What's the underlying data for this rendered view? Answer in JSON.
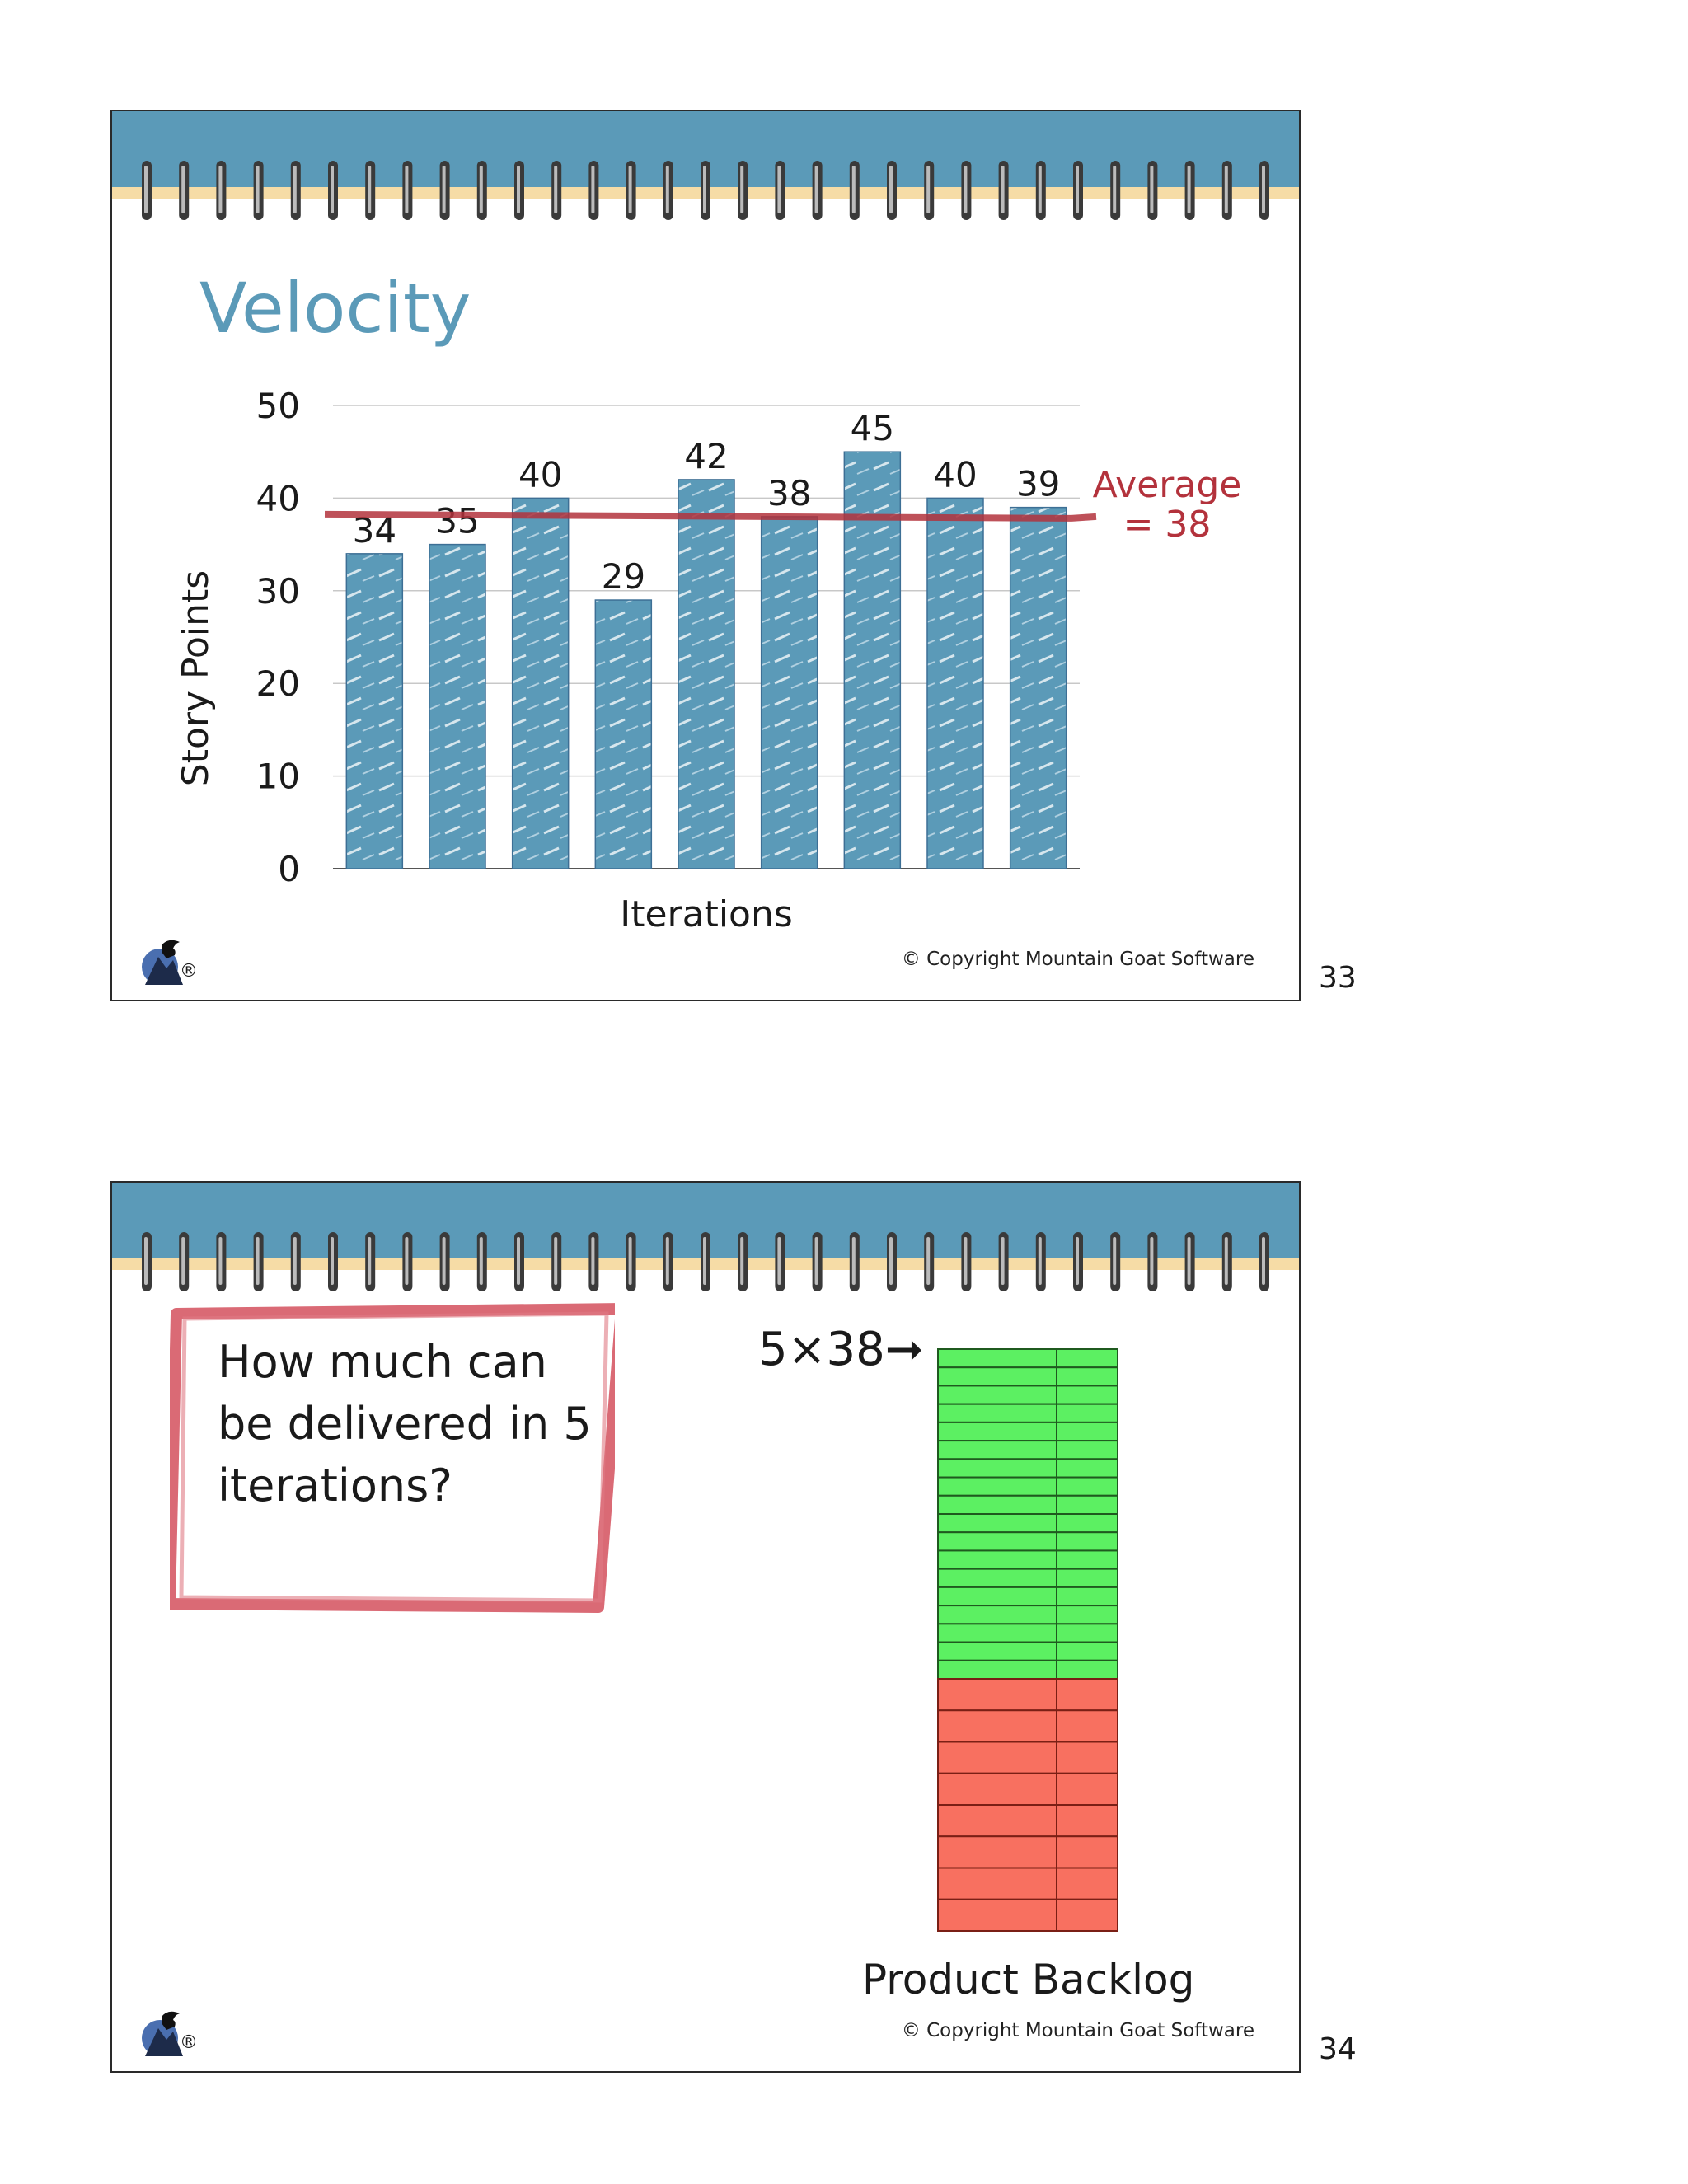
{
  "slide33": {
    "title": "Velocity",
    "copyright": "© Copyright Mountain Goat Software",
    "page_number": "33",
    "logo_mark": "®",
    "logo_icon": "mountain-goat-logo",
    "average_line": "Average",
    "average_value": "= 38",
    "colors": {
      "title": "#5b9ab8",
      "bar": "#5b9ab8",
      "average": "#b3323c",
      "binding": "#5b9ab8"
    }
  },
  "chart_data": {
    "type": "bar",
    "categories": [
      "",
      "",
      "",
      "",
      "",
      "",
      "",
      "",
      ""
    ],
    "values": [
      34,
      35,
      40,
      29,
      42,
      38,
      45,
      40,
      39
    ],
    "data_labels": [
      "34",
      "35",
      "40",
      "29",
      "42",
      "38",
      "45",
      "40",
      "39"
    ],
    "title": "",
    "xlabel": "Iterations",
    "ylabel": "Story Points",
    "ylim": [
      0,
      50
    ],
    "yticks": [
      "0",
      "10",
      "20",
      "30",
      "40",
      "50"
    ],
    "grid": true,
    "reference_line": {
      "value": 38,
      "label": "Average = 38"
    }
  },
  "slide34": {
    "question": "How much can be delivered in 5 iterations?",
    "multiplier": "5×38➞",
    "backlog_label": "Product Backlog",
    "copyright": "© Copyright Mountain Goat Software",
    "page_number": "34",
    "logo_mark": "®",
    "logo_icon": "mountain-goat-logo",
    "colors": {
      "delivered": "#5cf062",
      "remaining": "#f87060",
      "box": "#d65a66"
    },
    "backlog": {
      "delivered_rows": 18,
      "remaining_rows": 8
    }
  }
}
